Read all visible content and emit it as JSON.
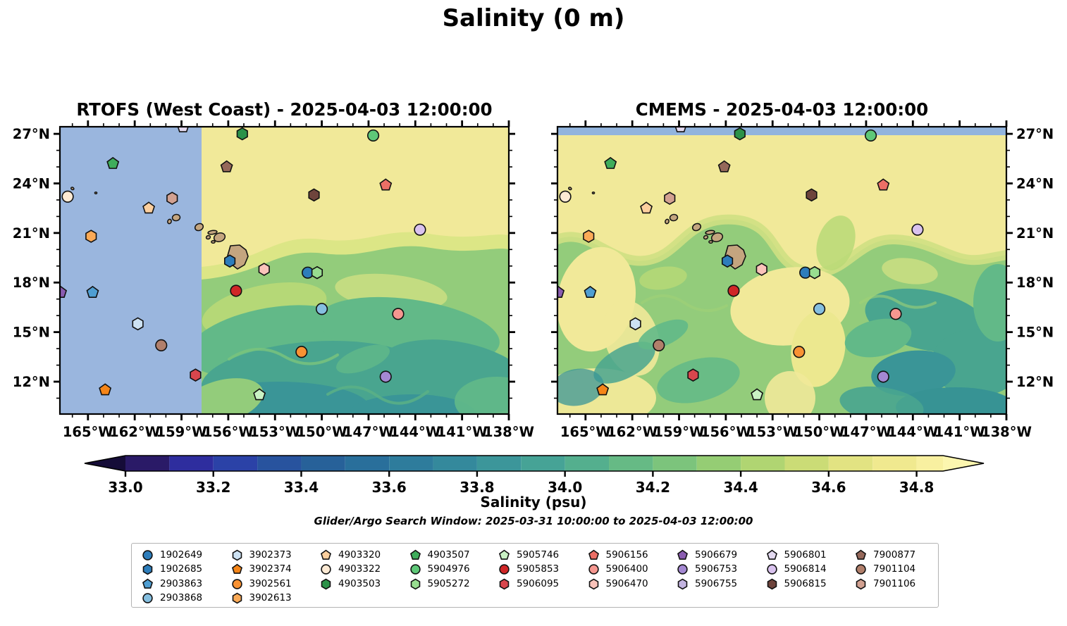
{
  "title": "Salinity (0 m)",
  "panels": [
    {
      "id": "rtofs",
      "title": "RTOFS (West Coast) - 2025-04-03 12:00:00",
      "no_data_region": "west of ~157.7°W (solid blue fill)"
    },
    {
      "id": "cmems",
      "title": "CMEMS - 2025-04-03 12:00:00",
      "no_data_region": "north of ~27.2°N (blue strip at top)"
    }
  ],
  "axes": {
    "lon_tick_labels": [
      "165°W",
      "162°W",
      "159°W",
      "156°W",
      "153°W",
      "150°W",
      "147°W",
      "144°W",
      "141°W",
      "138°W"
    ],
    "lon_tick_values_w": [
      165,
      162,
      159,
      156,
      153,
      150,
      147,
      144,
      141,
      138
    ],
    "lat_tick_labels": [
      "27°N",
      "24°N",
      "21°N",
      "18°N",
      "15°N",
      "12°N"
    ],
    "lat_tick_values_n": [
      27,
      24,
      21,
      18,
      15,
      12
    ]
  },
  "colorbar": {
    "label": "Salinity (psu)",
    "tick_labels": [
      "33.0",
      "33.2",
      "33.4",
      "33.6",
      "33.8",
      "34.0",
      "34.2",
      "34.4",
      "34.6",
      "34.8"
    ],
    "tick_values": [
      33.0,
      33.2,
      33.4,
      33.6,
      33.8,
      34.0,
      34.2,
      34.4,
      34.6,
      34.8
    ],
    "body_range": [
      33.0,
      34.86
    ],
    "segment_step": 0.1,
    "segment_colors": [
      "#2a1a67",
      "#2e2d9e",
      "#2b42a7",
      "#28539e",
      "#276199",
      "#296f9b",
      "#2e7c9c",
      "#34899c",
      "#3c969a",
      "#46a396",
      "#54af8e",
      "#66ba85",
      "#7cc47c",
      "#95cd74",
      "#b0d572",
      "#cbdc76",
      "#e2e382",
      "#f0e98f",
      "#f8f0a0"
    ],
    "arrow_low_color": "#150c38",
    "arrow_high_color": "#fcf6af"
  },
  "subtitle": "Glider/Argo Search Window: 2025-03-31 10:00:00 to 2025-04-03 12:00:00",
  "legend": {
    "columns": [
      4,
      4,
      3,
      3,
      3,
      3,
      3,
      3,
      3
    ],
    "entries": [
      {
        "id": "1902649",
        "shape": "circle",
        "color": "#2d7dbb"
      },
      {
        "id": "1902685",
        "shape": "hexagon",
        "color": "#2d7dbb"
      },
      {
        "id": "2903863",
        "shape": "pentagon",
        "color": "#4f9ed2"
      },
      {
        "id": "2903868",
        "shape": "circle",
        "color": "#85bfe0"
      },
      {
        "id": "3902373",
        "shape": "hexagon",
        "color": "#cde2f3"
      },
      {
        "id": "3902374",
        "shape": "pentagon",
        "color": "#f58518"
      },
      {
        "id": "3902561",
        "shape": "circle",
        "color": "#f99233"
      },
      {
        "id": "3902613",
        "shape": "hexagon",
        "color": "#fbaa57"
      },
      {
        "id": "4903320",
        "shape": "pentagon",
        "color": "#fccf9e"
      },
      {
        "id": "4903322",
        "shape": "circle",
        "color": "#fdead4"
      },
      {
        "id": "4903503",
        "shape": "hexagon",
        "color": "#2c9249"
      },
      {
        "id": "4903507",
        "shape": "pentagon",
        "color": "#3fad5b"
      },
      {
        "id": "5904976",
        "shape": "circle",
        "color": "#5ec878"
      },
      {
        "id": "5905272",
        "shape": "hexagon",
        "color": "#98dd90"
      },
      {
        "id": "5905746",
        "shape": "pentagon",
        "color": "#c9f2c4"
      },
      {
        "id": "5905853",
        "shape": "circle",
        "color": "#d02627"
      },
      {
        "id": "5906095",
        "shape": "hexagon",
        "color": "#d8464d"
      },
      {
        "id": "5906156",
        "shape": "pentagon",
        "color": "#ec6f66"
      },
      {
        "id": "5906400",
        "shape": "circle",
        "color": "#f59790"
      },
      {
        "id": "5906470",
        "shape": "hexagon",
        "color": "#fac3ba"
      },
      {
        "id": "5906679",
        "shape": "pentagon",
        "color": "#8a5cb0"
      },
      {
        "id": "5906753",
        "shape": "circle",
        "color": "#a488d2"
      },
      {
        "id": "5906755",
        "shape": "hexagon",
        "color": "#c3b4e0"
      },
      {
        "id": "5906801",
        "shape": "pentagon",
        "color": "#e3d9f0"
      },
      {
        "id": "5906814",
        "shape": "circle",
        "color": "#d9c2ee"
      },
      {
        "id": "5906815",
        "shape": "hexagon",
        "color": "#6e443c"
      },
      {
        "id": "7900877",
        "shape": "pentagon",
        "color": "#95685a"
      },
      {
        "id": "7901104",
        "shape": "circle",
        "color": "#b17f6b"
      },
      {
        "id": "7901106",
        "shape": "hexagon",
        "color": "#d2a191"
      }
    ]
  },
  "chart_data": {
    "type": "heatmap",
    "title": "Salinity (0 m)",
    "colorbar_label": "Salinity (psu)",
    "colorbar_ticks": [
      33.0,
      33.2,
      33.4,
      33.6,
      33.8,
      34.0,
      34.2,
      34.4,
      34.6,
      34.8
    ],
    "colorbar_extends": "both",
    "map_extent": {
      "lon_w": [
        166.8,
        138.0
      ],
      "lat_n": [
        27.43,
        10.04
      ]
    },
    "panels": [
      {
        "title": "RTOFS (West Coast) - 2025-04-03 12:00:00",
        "field": "surface salinity, yellow (>34.8) north of ~22°N, green/teal (34.0–34.6) south; blue no-data west of ~157.7°W"
      },
      {
        "title": "CMEMS - 2025-04-03 12:00:00",
        "field": "surface salinity, turbulent yellow/green filaments; blue no-data strip north of ~27.2°N"
      }
    ],
    "float_markers": [
      {
        "wmo": "1902649",
        "lon_w": 150.9,
        "lat_n": 18.6,
        "shape": "circle",
        "color": "#2d7dbb"
      },
      {
        "wmo": "1902685",
        "lon_w": 155.9,
        "lat_n": 19.3,
        "shape": "hexagon",
        "color": "#2d7dbb"
      },
      {
        "wmo": "2903863",
        "lon_w": 164.7,
        "lat_n": 17.4,
        "shape": "pentagon",
        "color": "#4f9ed2"
      },
      {
        "wmo": "2903868",
        "lon_w": 150.0,
        "lat_n": 16.4,
        "shape": "circle",
        "color": "#85bfe0"
      },
      {
        "wmo": "3902373",
        "lon_w": 161.8,
        "lat_n": 15.5,
        "shape": "hexagon",
        "color": "#cde2f3"
      },
      {
        "wmo": "3902374",
        "lon_w": 163.9,
        "lat_n": 11.5,
        "shape": "pentagon",
        "color": "#f58518"
      },
      {
        "wmo": "3902561",
        "lon_w": 151.3,
        "lat_n": 13.8,
        "shape": "circle",
        "color": "#f99233"
      },
      {
        "wmo": "3902613",
        "lon_w": 164.8,
        "lat_n": 20.8,
        "shape": "hexagon",
        "color": "#fbaa57"
      },
      {
        "wmo": "4903320",
        "lon_w": 161.1,
        "lat_n": 22.5,
        "shape": "pentagon",
        "color": "#fccf9e"
      },
      {
        "wmo": "4903322",
        "lon_w": 166.3,
        "lat_n": 23.2,
        "shape": "circle",
        "color": "#fdead4"
      },
      {
        "wmo": "4903503",
        "lon_w": 155.1,
        "lat_n": 27.0,
        "shape": "hexagon",
        "color": "#2c9249"
      },
      {
        "wmo": "4903507",
        "lon_w": 163.4,
        "lat_n": 25.2,
        "shape": "pentagon",
        "color": "#3fad5b"
      },
      {
        "wmo": "5904976",
        "lon_w": 146.7,
        "lat_n": 26.9,
        "shape": "circle",
        "color": "#5ec878"
      },
      {
        "wmo": "5905272",
        "lon_w": 150.3,
        "lat_n": 18.6,
        "shape": "hexagon",
        "color": "#98dd90"
      },
      {
        "wmo": "5905746",
        "lon_w": 154.0,
        "lat_n": 11.2,
        "shape": "pentagon",
        "color": "#c9f2c4"
      },
      {
        "wmo": "5905853",
        "lon_w": 155.5,
        "lat_n": 17.5,
        "shape": "circle",
        "color": "#d02627"
      },
      {
        "wmo": "5906095",
        "lon_w": 158.1,
        "lat_n": 12.4,
        "shape": "hexagon",
        "color": "#d8464d"
      },
      {
        "wmo": "5906156",
        "lon_w": 145.9,
        "lat_n": 23.9,
        "shape": "pentagon",
        "color": "#ec6f66"
      },
      {
        "wmo": "5906400",
        "lon_w": 145.1,
        "lat_n": 16.1,
        "shape": "circle",
        "color": "#f59790"
      },
      {
        "wmo": "5906470",
        "lon_w": 153.7,
        "lat_n": 18.8,
        "shape": "hexagon",
        "color": "#fac3ba"
      },
      {
        "wmo": "5906679",
        "lon_w": 166.75,
        "lat_n": 17.4,
        "shape": "pentagon",
        "color": "#8a5cb0"
      },
      {
        "wmo": "5906753",
        "lon_w": 145.9,
        "lat_n": 12.3,
        "shape": "circle",
        "color": "#a488d2"
      },
      {
        "wmo": "5906801",
        "lon_w": 158.9,
        "lat_n": 27.42,
        "shape": "pentagon",
        "color": "#e3d9f0"
      },
      {
        "wmo": "5906814",
        "lon_w": 143.7,
        "lat_n": 21.2,
        "shape": "circle",
        "color": "#d9c2ee"
      },
      {
        "wmo": "5906815",
        "lon_w": 150.5,
        "lat_n": 23.3,
        "shape": "hexagon",
        "color": "#6e443c"
      },
      {
        "wmo": "7900877",
        "lon_w": 156.1,
        "lat_n": 25.0,
        "shape": "pentagon",
        "color": "#95685a"
      },
      {
        "wmo": "7901104",
        "lon_w": 160.3,
        "lat_n": 14.2,
        "shape": "circle",
        "color": "#b17f6b"
      },
      {
        "wmo": "7901106",
        "lon_w": 159.6,
        "lat_n": 23.1,
        "shape": "hexagon",
        "color": "#d2a191"
      }
    ],
    "islands": "Hawaiian island chain (Kauai, Niihau, Oahu, Molokai, Lanai, Maui, Kahoolawe, Hawaii) drawn tan with black coastlines",
    "no_data_color": "#9ab6de"
  }
}
